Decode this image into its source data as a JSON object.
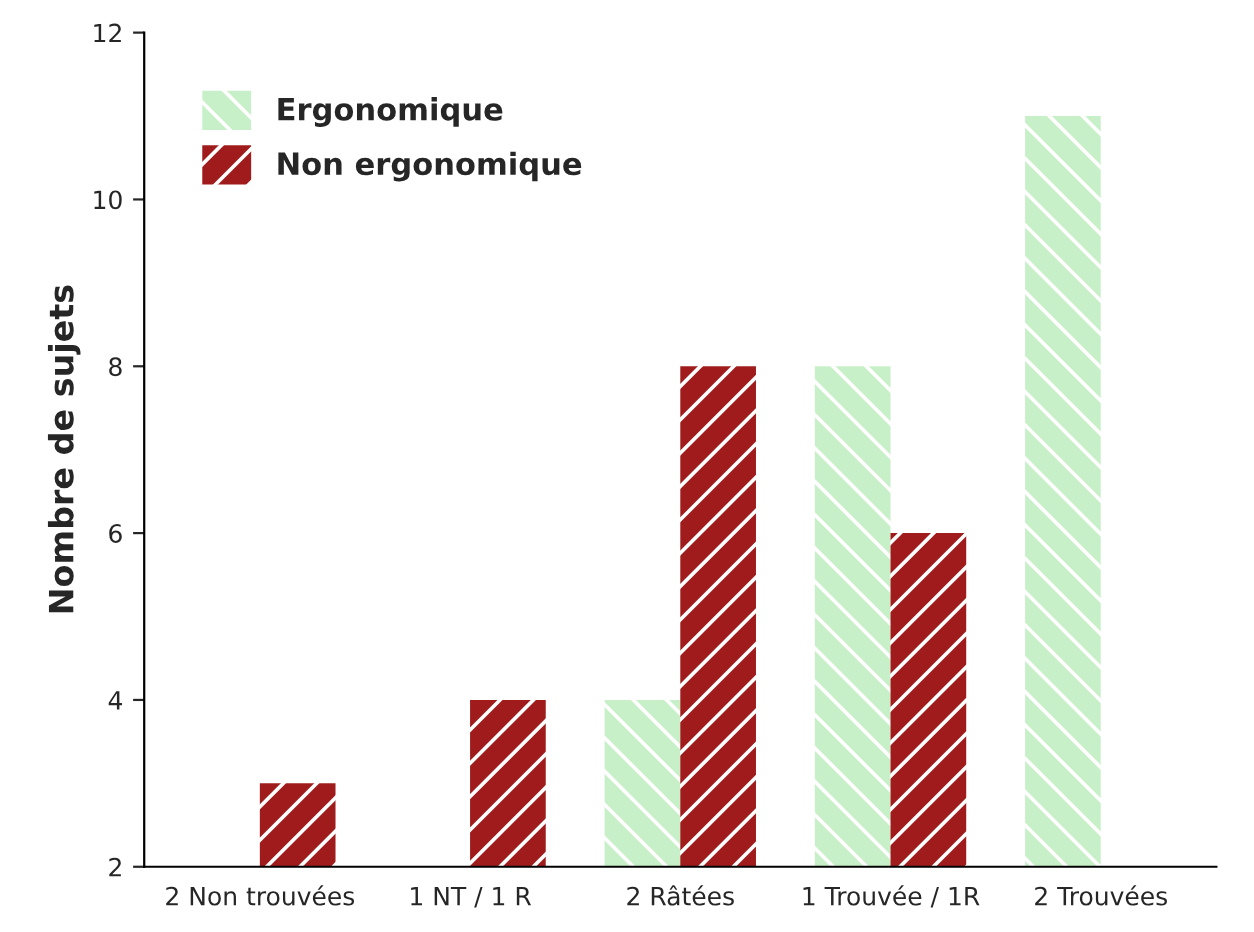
{
  "chart_data": {
    "type": "bar",
    "ylabel": "Nombre de sujets",
    "categories": [
      "2 Non trouvées",
      "1 NT / 1 R",
      "2 Râtées",
      "1 Trouvée / 1R",
      "2 Trouvées"
    ],
    "series": [
      {
        "name": "Ergonomique",
        "color": "#c8f0c8",
        "values": [
          null,
          null,
          4,
          8,
          11
        ]
      },
      {
        "name": "Non ergonomique",
        "color": "#a01c1c",
        "values": [
          3,
          4,
          8,
          6,
          null
        ]
      }
    ],
    "ylim": [
      2,
      12
    ],
    "yticks": [
      2,
      4,
      6,
      8,
      10,
      12
    ],
    "grid": false,
    "legend": "top left"
  }
}
